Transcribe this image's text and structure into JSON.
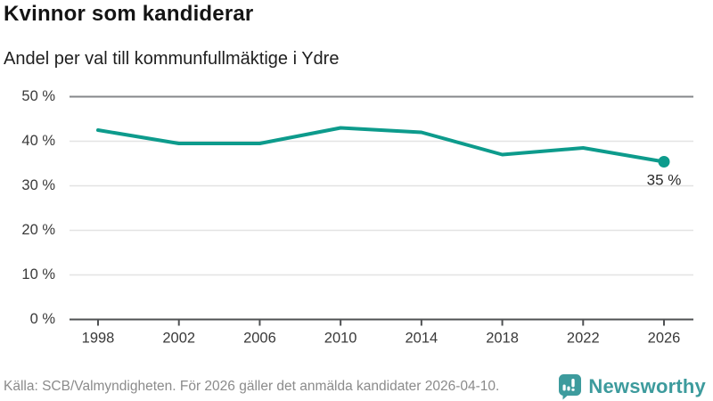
{
  "header": {
    "title": "Kvinnor som kandiderar",
    "subtitle": "Andel per val till kommunfullmäktige i Ydre"
  },
  "chart_data": {
    "type": "line",
    "x": [
      1998,
      2002,
      2006,
      2010,
      2014,
      2018,
      2022,
      2026
    ],
    "values": [
      42.5,
      39.5,
      39.5,
      43,
      42,
      37,
      38.5,
      35.4
    ],
    "end_label": "35 %",
    "title": "Kvinnor som kandiderar",
    "subtitle": "Andel per val till kommunfullmäktige i Ydre",
    "xlabel": "",
    "ylabel": "",
    "ylim": [
      0,
      50
    ],
    "ytick_step": 10,
    "ytick_suffix": " %",
    "grid": true,
    "legend": "none",
    "line_color": "#0d9b8c",
    "grid_color": "#e3e3e3",
    "top_line_color": "#85878a",
    "axis_color": "#4f5153",
    "tick_label_color": "#3a3a3a",
    "end_label_color": "#2a2a2a"
  },
  "footer": {
    "source": "Källa: SCB/Valmyndigheten. För 2026 gäller det anmälda kandidater 2026-04-10.",
    "brand": "Newsworthy",
    "brand_color": "#3d9b9d"
  }
}
